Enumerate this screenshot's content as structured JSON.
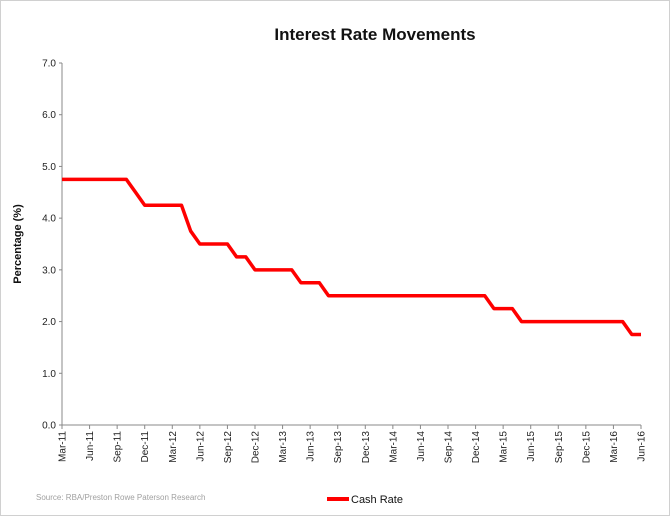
{
  "chart_data": {
    "type": "line",
    "title": "Interest Rate Movements",
    "y_label": "Percentage (%)",
    "source": "Source: RBA/Preston Rowe Paterson Research",
    "categories": [
      "Mar-11",
      null,
      null,
      "Jun-11",
      null,
      null,
      "Sep-11",
      null,
      null,
      "Dec-11",
      null,
      null,
      "Mar-12",
      null,
      null,
      "Jun-12",
      null,
      null,
      "Sep-12",
      null,
      null,
      "Dec-12",
      null,
      null,
      "Mar-13",
      null,
      null,
      "Jun-13",
      null,
      null,
      "Sep-13",
      null,
      null,
      "Dec-13",
      null,
      null,
      "Mar-14",
      null,
      null,
      "Jun-14",
      null,
      null,
      "Sep-14",
      null,
      null,
      "Dec-14",
      null,
      null,
      "Mar-15",
      null,
      null,
      "Jun-15",
      null,
      null,
      "Sep-15",
      null,
      null,
      "Dec-15",
      null,
      null,
      "Mar-16",
      null,
      null,
      "Jun-16"
    ],
    "series": [
      {
        "name": "Cash Rate",
        "color": "#ff0000",
        "values": [
          4.75,
          4.75,
          4.75,
          4.75,
          4.75,
          4.75,
          4.75,
          4.75,
          4.5,
          4.25,
          4.25,
          4.25,
          4.25,
          4.25,
          3.75,
          3.5,
          3.5,
          3.5,
          3.5,
          3.25,
          3.25,
          3,
          3,
          3,
          3,
          3,
          2.75,
          2.75,
          2.75,
          2.5,
          2.5,
          2.5,
          2.5,
          2.5,
          2.5,
          2.5,
          2.5,
          2.5,
          2.5,
          2.5,
          2.5,
          2.5,
          2.5,
          2.5,
          2.5,
          2.5,
          2.5,
          2.25,
          2.25,
          2.25,
          2,
          2,
          2,
          2,
          2,
          2,
          2,
          2,
          2,
          2,
          2,
          2,
          1.75,
          1.75
        ]
      }
    ],
    "ylim": [
      0,
      7
    ],
    "yticks": [
      {
        "value": 0,
        "label": "0.0"
      },
      {
        "value": 1,
        "label": "1.0"
      },
      {
        "value": 2,
        "label": "2.0"
      },
      {
        "value": 3,
        "label": "3.0"
      },
      {
        "value": 4,
        "label": "4.0"
      },
      {
        "value": 5,
        "label": "5.0"
      },
      {
        "value": 6,
        "label": "6.0"
      },
      {
        "value": 7,
        "label": "7.0"
      }
    ],
    "legend": "bottom"
  }
}
